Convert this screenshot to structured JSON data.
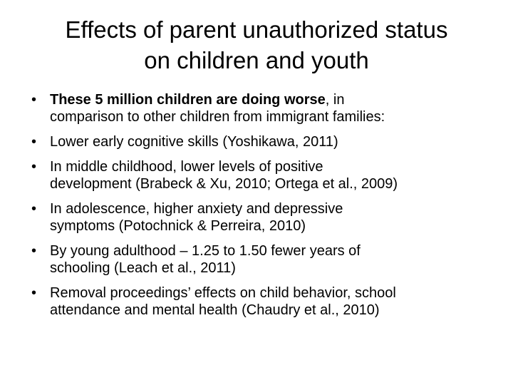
{
  "slide": {
    "title_lines": [
      "Effects of parent unauthorized status",
      "on children and youth"
    ],
    "bullet_glyph": "•",
    "bullets": [
      {
        "bold": "These 5 million children are doing worse",
        "line1_rest": ", in",
        "line2": "comparison to other children from immigrant families:"
      },
      {
        "line1": "Lower early cognitive skills (Yoshikawa, 2011)"
      },
      {
        "line1": "In middle childhood, lower levels of positive",
        "line2": "development (Brabeck & Xu, 2010; Ortega et al., 2009)"
      },
      {
        "line1": "In adolescence, higher anxiety and depressive",
        "line2": "symptoms (Potochnick & Perreira, 2010)"
      },
      {
        "line1": "By young adulthood – 1.25 to 1.50 fewer years of",
        "line2": "schooling (Leach et al., 2011)"
      },
      {
        "line1": "Removal proceedings’ effects on child behavior, school",
        "line2": "attendance and mental health (Chaudry et al., 2010)"
      }
    ]
  }
}
